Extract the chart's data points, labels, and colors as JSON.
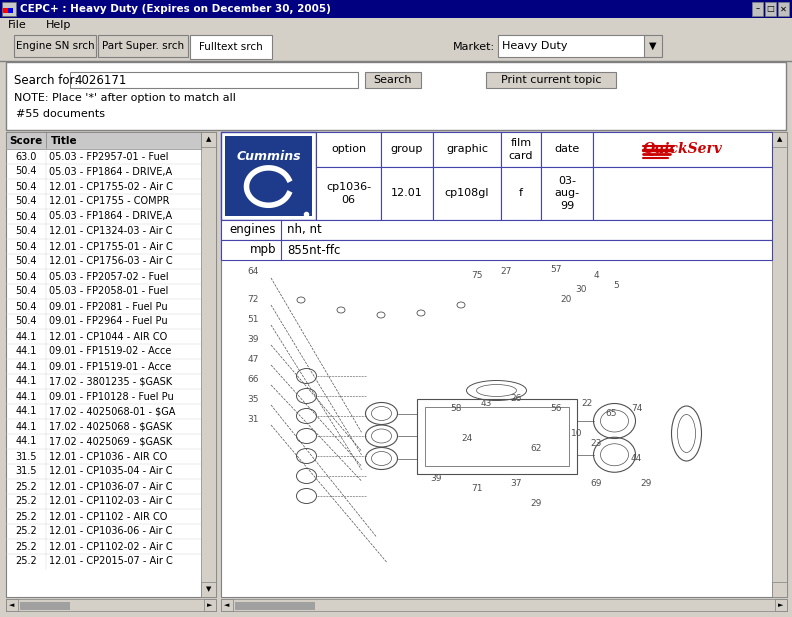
{
  "title": "CEPC+ : Heavy Duty (Expires on December 30, 2005)",
  "bg_color": "#d4d0c8",
  "title_bar_color": "#000080",
  "menu_items": [
    "File",
    "Help"
  ],
  "tabs": [
    "Engine SN srch",
    "Part Super. srch",
    "Fulltext srch"
  ],
  "active_tab": 2,
  "market_label": "Market:",
  "market_value": "Heavy Duty",
  "search_label": "Search for:",
  "search_value": "4026171",
  "note_text": "NOTE: Place '*' after option to match all",
  "doc_count": "#55 documents",
  "table_rows": [
    [
      "63.0",
      "05.03 - FP2957-01 - Fuel"
    ],
    [
      "50.4",
      "05.03 - FP1864 - DRIVE,A"
    ],
    [
      "50.4",
      "12.01 - CP1755-02 - Air C"
    ],
    [
      "50.4",
      "12.01 - CP1755 - COMPR"
    ],
    [
      "50.4",
      "05.03 - FP1864 - DRIVE,A"
    ],
    [
      "50.4",
      "12.01 - CP1324-03 - Air C"
    ],
    [
      "50.4",
      "12.01 - CP1755-01 - Air C"
    ],
    [
      "50.4",
      "12.01 - CP1756-03 - Air C"
    ],
    [
      "50.4",
      "05.03 - FP2057-02 - Fuel"
    ],
    [
      "50.4",
      "05.03 - FP2058-01 - Fuel"
    ],
    [
      "50.4",
      "09.01 - FP2081 - Fuel Pu"
    ],
    [
      "50.4",
      "09.01 - FP2964 - Fuel Pu"
    ],
    [
      "44.1",
      "12.01 - CP1044 - AIR CO"
    ],
    [
      "44.1",
      "09.01 - FP1519-02 - Acce"
    ],
    [
      "44.1",
      "09.01 - FP1519-01 - Acce"
    ],
    [
      "44.1",
      "17.02 - 3801235 - $GASK"
    ],
    [
      "44.1",
      "09.01 - FP10128 - Fuel Pu"
    ],
    [
      "44.1",
      "17.02 - 4025068-01 - $GA"
    ],
    [
      "44.1",
      "17.02 - 4025068 - $GASK"
    ],
    [
      "44.1",
      "17.02 - 4025069 - $GASK"
    ],
    [
      "31.5",
      "12.01 - CP1036 - AIR CO"
    ],
    [
      "31.5",
      "12.01 - CP1035-04 - Air C"
    ],
    [
      "25.2",
      "12.01 - CP1036-07 - Air C"
    ],
    [
      "25.2",
      "12.01 - CP1102-03 - Air C"
    ],
    [
      "25.2",
      "12.01 - CP1102 - AIR CO"
    ],
    [
      "25.2",
      "12.01 - CP1036-06 - Air C"
    ],
    [
      "25.2",
      "12.01 - CP1102-02 - Air C"
    ],
    [
      "25.2",
      "12.01 - CP2015-07 - Air C"
    ]
  ],
  "info_option": "cp1036-\n06",
  "info_group": "12.01",
  "info_graphic": "cp108gl",
  "info_film_card": "f",
  "info_date": "03-\naug-\n99",
  "info_engines": "nh, nt",
  "info_mpb": "855nt-ffc",
  "cummins_blue": "#1e3a8a",
  "qs_red": "#cc0000",
  "border_color": "#4444aa",
  "grid_color": "#6060a0"
}
